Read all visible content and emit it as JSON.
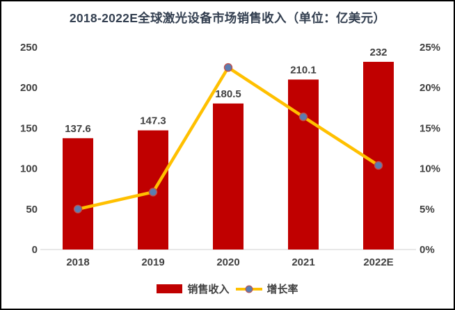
{
  "chart_data": {
    "type": "bar",
    "subtype": "combo-bar-line-dual-axis",
    "title": "2018-2022E全球激光设备市场销售收入（单位：亿美元）",
    "categories": [
      "2018",
      "2019",
      "2020",
      "2021",
      "2022E"
    ],
    "series": [
      {
        "name": "销售收入",
        "type": "bar",
        "axis": "left",
        "values": [
          137.6,
          147.3,
          180.5,
          210.1,
          232
        ],
        "labels": [
          "137.6",
          "147.3",
          "180.5",
          "210.1",
          "232"
        ],
        "color": "#C00000"
      },
      {
        "name": "增长率",
        "type": "line",
        "axis": "right",
        "values_pct": [
          5.0,
          7.1,
          22.5,
          16.4,
          10.4
        ],
        "color": "#FFC000",
        "marker_fill": "#5B7DB1",
        "marker_stroke": "#C0504D"
      }
    ],
    "left_axis": {
      "min": 0,
      "max": 250,
      "ticks": [
        "250",
        "200",
        "150",
        "100",
        "50",
        "0"
      ]
    },
    "right_axis": {
      "min": 0,
      "max": 25,
      "ticks": [
        "25%",
        "20%",
        "15%",
        "10%",
        "5%",
        "0%"
      ]
    },
    "legend_position": "bottom",
    "gridlines": false,
    "colors": {
      "title": "#333F50",
      "labels": "#404040",
      "axis_line": "#D9D9D9",
      "background": "#FFFFFF",
      "border": "#000000"
    }
  }
}
